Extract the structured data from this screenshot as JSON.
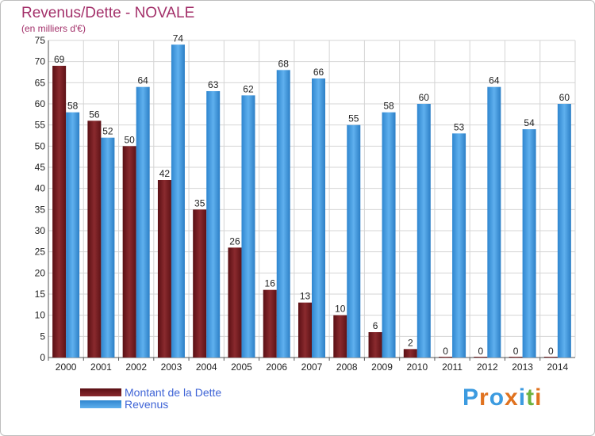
{
  "title": "Revenus/Dette - NOVALE",
  "subtitle": "(en milliers d'€)",
  "colors": {
    "dette": "#7a1e22",
    "revenus": "#3c9be0",
    "title": "#a3306a",
    "legend_text": "#3f64d6"
  },
  "logo": {
    "text": "Proxiti",
    "colors": [
      "#3c9be0",
      "#e0721f",
      "#3c9be0",
      "#e0721f",
      "#3c9be0",
      "#6cb33f",
      "#e0721f"
    ]
  },
  "chart_data": {
    "type": "bar",
    "title": "Revenus/Dette - NOVALE",
    "subtitle": "(en milliers d'€)",
    "categories": [
      "2000",
      "2001",
      "2002",
      "2003",
      "2004",
      "2005",
      "2006",
      "2007",
      "2008",
      "2009",
      "2010",
      "2011",
      "2012",
      "2013",
      "2014"
    ],
    "series": [
      {
        "name": "Montant de la Dette",
        "values": [
          69,
          56,
          50,
          42,
          35,
          26,
          16,
          13,
          10,
          6,
          2,
          0,
          0,
          0,
          0
        ]
      },
      {
        "name": "Revenus",
        "values": [
          58,
          52,
          64,
          74,
          63,
          62,
          68,
          66,
          55,
          58,
          60,
          53,
          64,
          54,
          60
        ]
      }
    ],
    "ylim": [
      0,
      75
    ],
    "yticks": [
      0,
      5,
      10,
      15,
      20,
      25,
      30,
      35,
      40,
      45,
      50,
      55,
      60,
      65,
      70,
      75
    ],
    "grid": true,
    "legend": "bottom-left"
  }
}
